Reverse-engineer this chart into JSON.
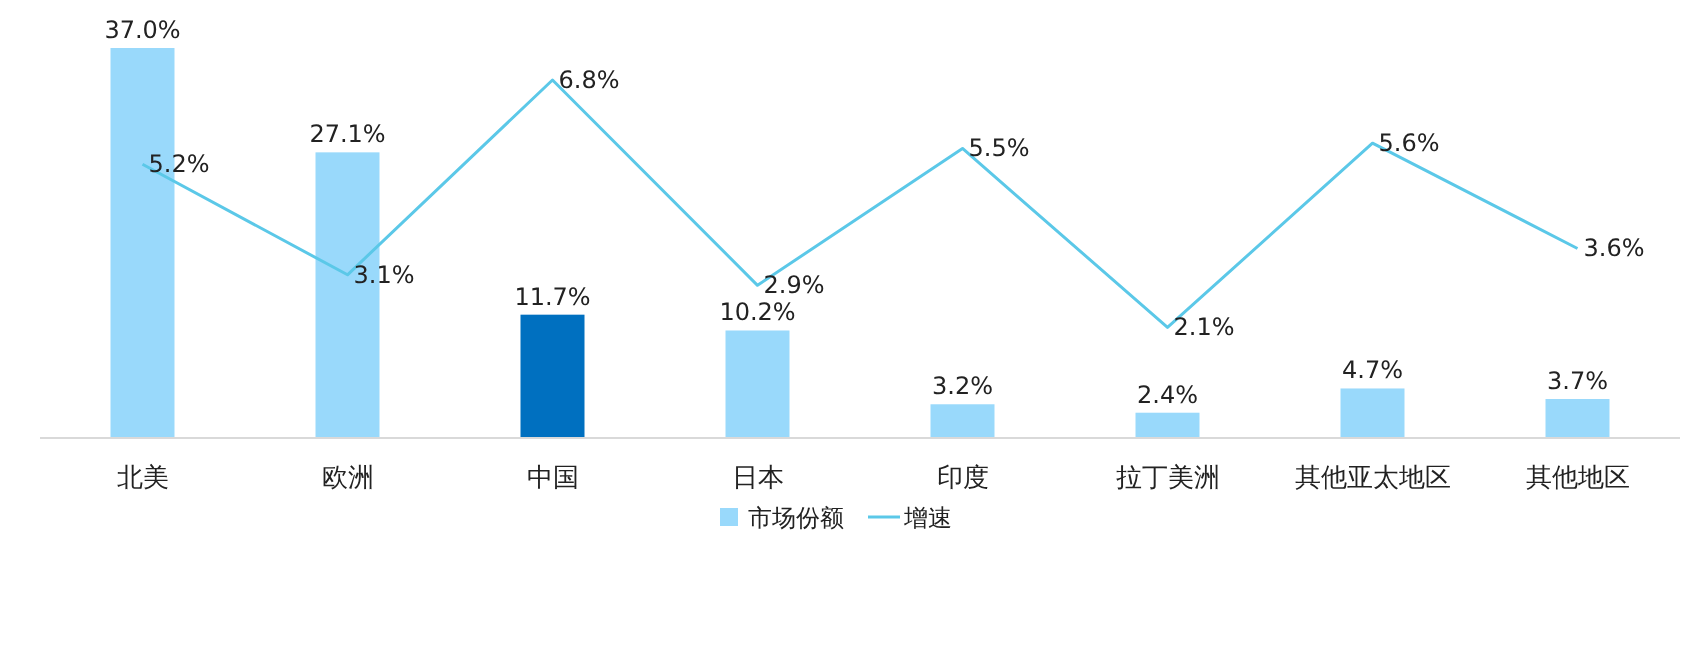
{
  "chart_data": {
    "type": "bar",
    "categories": [
      "北美",
      "欧洲",
      "中国",
      "日本",
      "印度",
      "拉丁美洲",
      "其他亚太地区",
      "其他地区"
    ],
    "series": [
      {
        "name": "市场份额",
        "color": "#99d9fb",
        "colors": [
          "#99d9fb",
          "#99d9fb",
          "#0070c0",
          "#99d9fb",
          "#99d9fb",
          "#99d9fb",
          "#99d9fb",
          "#99d9fb"
        ],
        "values": [
          37.0,
          27.1,
          11.7,
          10.2,
          3.2,
          2.4,
          4.7,
          3.7
        ],
        "value_labels": [
          "37.0%",
          "27.1%",
          "11.7%",
          "10.2%",
          "3.2%",
          "2.4%",
          "4.7%",
          "3.7%"
        ]
      },
      {
        "name": "增速",
        "type": "line",
        "axis": "y2",
        "color": "#5bc8e8",
        "values": [
          5.2,
          3.1,
          6.8,
          2.9,
          5.5,
          2.1,
          5.6,
          3.6
        ],
        "value_labels": [
          "5.2%",
          "3.1%",
          "6.8%",
          "2.9%",
          "5.5%",
          "2.1%",
          "5.6%",
          "3.6%"
        ]
      }
    ],
    "legend": "bottom",
    "marker": "none",
    "line_style": "solid"
  }
}
